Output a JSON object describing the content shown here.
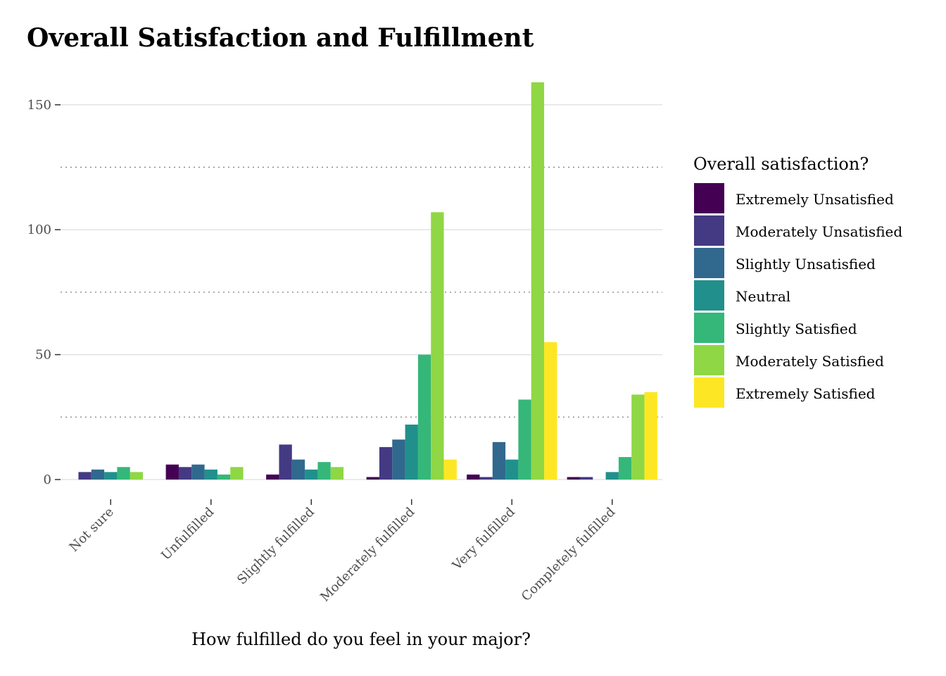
{
  "chart_data": {
    "type": "bar",
    "title": "Overall Satisfaction and Fulfillment",
    "xlabel": "How fulfilled do you feel in your major?",
    "ylabel": "",
    "ylim": [
      0,
      160
    ],
    "yticks": [
      0,
      50,
      100,
      150
    ],
    "grid": "major solid, minor dotted",
    "categories": [
      "Not sure",
      "Unfulfilled",
      "Slightly fulfilled",
      "Moderately fulfilled",
      "Very fulfilled",
      "Completely fulfilled"
    ],
    "legend": {
      "title": "Overall satisfaction?",
      "position": "right"
    },
    "series": [
      {
        "name": "Extremely Unsatisfied",
        "color": "#440154",
        "values": [
          0,
          6,
          2,
          1,
          2,
          1
        ]
      },
      {
        "name": "Moderately Unsatisfied",
        "color": "#443A83",
        "values": [
          3,
          5,
          14,
          13,
          1,
          1
        ]
      },
      {
        "name": "Slightly Unsatisfied",
        "color": "#31688E",
        "values": [
          4,
          6,
          8,
          16,
          15,
          0
        ]
      },
      {
        "name": "Neutral",
        "color": "#21908C",
        "values": [
          3,
          4,
          4,
          22,
          8,
          3
        ]
      },
      {
        "name": "Slightly Satisfied",
        "color": "#35B779",
        "values": [
          5,
          2,
          7,
          50,
          32,
          9
        ]
      },
      {
        "name": "Moderately Satisfied",
        "color": "#8FD744",
        "values": [
          3,
          5,
          5,
          107,
          159,
          34
        ]
      },
      {
        "name": "Extremely Satisfied",
        "color": "#FDE725",
        "values": [
          0,
          0,
          0,
          8,
          55,
          35
        ]
      }
    ]
  }
}
